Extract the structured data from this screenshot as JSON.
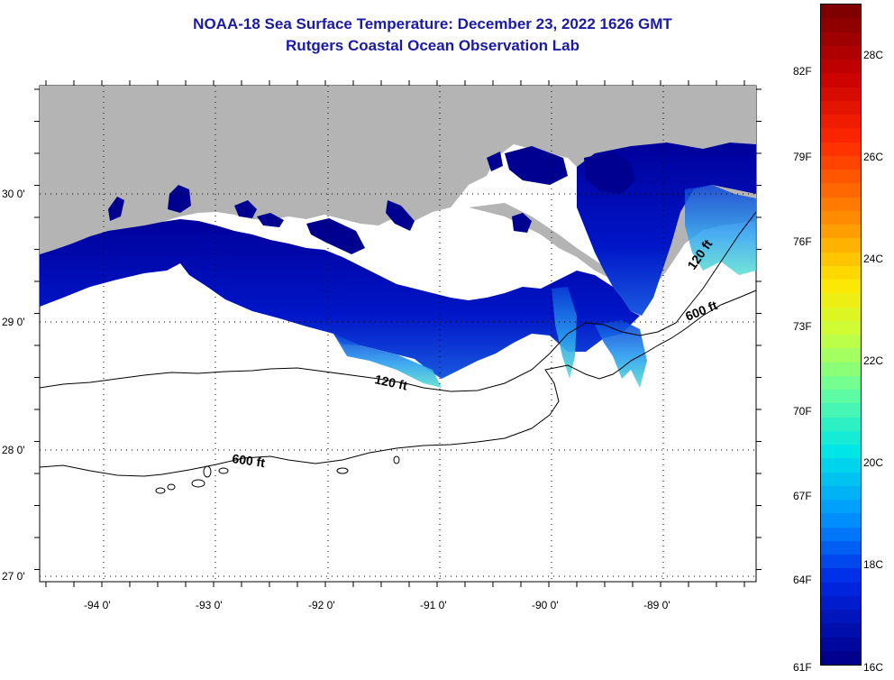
{
  "header": {
    "title": "NOAA-18 Sea Surface Temperature:  December 23, 2022 1626 GMT",
    "subtitle": "Rutgers Coastal Ocean Observation Lab"
  },
  "map": {
    "lat_labels": [
      "30 0'",
      "29 0'",
      "28 0'",
      "27 0'"
    ],
    "lon_labels": [
      "-94 0'",
      "-93 0'",
      "-92 0'",
      "-91 0'",
      "-90 0'",
      "-89 0'"
    ],
    "contour_labels": {
      "c120_mid": "120 ft",
      "c600_mid": "600 ft",
      "c600_east": "600 ft",
      "c120_east": "120 ft"
    }
  },
  "colorbar": {
    "f_labels": [
      "82F",
      "79F",
      "76F",
      "73F",
      "70F",
      "67F",
      "64F",
      "61F"
    ],
    "c_labels": [
      "28C",
      "26C",
      "24C",
      "22C",
      "20C",
      "18C",
      "16C"
    ]
  },
  "colors": {
    "land": "#b4b4b4",
    "water_cold": "#00008f",
    "title": "#1a1aa6"
  }
}
